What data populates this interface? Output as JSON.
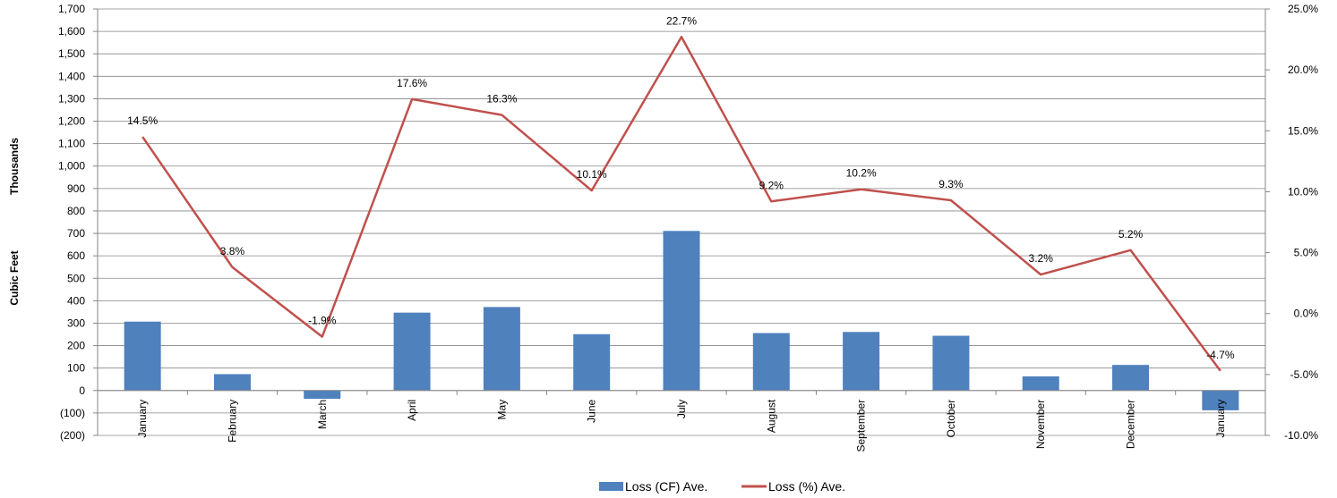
{
  "chart_data": {
    "type": "bar",
    "categories": [
      "January",
      "February",
      "March",
      "April",
      "May",
      "June",
      "July",
      "August",
      "September",
      "October",
      "November",
      "December",
      "January"
    ],
    "series": [
      {
        "name": "Loss (CF) Ave.",
        "type": "bar",
        "axis": "left",
        "values": [
          307,
          73,
          -37,
          347,
          372,
          251,
          711,
          256,
          261,
          244,
          63,
          114,
          -88
        ]
      },
      {
        "name": "Loss (%) Ave.",
        "type": "line",
        "axis": "right",
        "values": [
          14.5,
          3.8,
          -1.9,
          17.6,
          16.3,
          10.1,
          22.7,
          9.2,
          10.2,
          9.3,
          3.2,
          5.2,
          -4.7
        ],
        "labels": [
          "14.5%",
          "3.8%",
          "-1.9%",
          "17.6%",
          "16.3%",
          "10.1%",
          "22.7%",
          "9.2%",
          "10.2%",
          "9.3%",
          "3.2%",
          "5.2%",
          "-4.7%"
        ]
      }
    ],
    "ylabel_left_top": "Thousands",
    "ylabel_left": "Cubic Feet",
    "ylim_left": [
      -200,
      1700
    ],
    "yticks_left": [
      "1,700",
      "1,600",
      "1,500",
      "1,400",
      "1,300",
      "1,200",
      "1,100",
      "1,000",
      "900",
      "800",
      "700",
      "600",
      "500",
      "400",
      "300",
      "200",
      "100",
      "0",
      "(100)",
      "(200)"
    ],
    "ylim_right": [
      -10,
      25
    ],
    "yticks_right": [
      "25.0%",
      "20.0%",
      "15.0%",
      "10.0%",
      "5.0%",
      "0.0%",
      "-5.0%",
      "-10.0%"
    ],
    "grid": true,
    "legend_position": "bottom",
    "colors": {
      "bar": "#4F81BD",
      "line": "#C0504D",
      "grid": "#868686"
    }
  }
}
